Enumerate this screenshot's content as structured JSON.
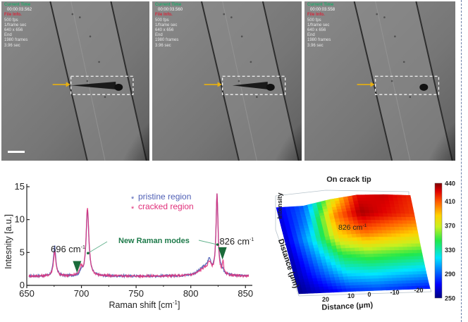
{
  "frames": [
    {
      "current_time_label": "Current Time",
      "timestamp": "00:00:03.562",
      "file_info_label": "File Info.",
      "lines": [
        "500 fps",
        "1/frame sec",
        "640 x 656",
        "End",
        "1980 frames",
        "3.96 sec"
      ],
      "has_scale_bar": true,
      "crack_state": "long-crack"
    },
    {
      "current_time_label": "Current Time",
      "timestamp": "00:00:03.560",
      "file_info_label": "File Info.",
      "lines": [
        "500 fps",
        "1/frame sec",
        "640 x 656",
        "End",
        "1980 frames",
        "3.96 sec"
      ],
      "has_scale_bar": false,
      "crack_state": "short-crack"
    },
    {
      "current_time_label": "Current Time",
      "timestamp": "00:00:03.558",
      "file_info_label": "File Info.",
      "lines": [
        "500 fps",
        "1/frame sec",
        "640 x 656",
        "End",
        "1980 frames",
        "3.96 sec"
      ],
      "has_scale_bar": false,
      "crack_state": "no-crack"
    }
  ],
  "colors": {
    "arrow": "#e8b010",
    "pristine": "#4f5fb5",
    "cracked": "#e0307a",
    "annotation_green": "#1e7a4a",
    "marker_green": "#1a6a3a"
  },
  "chart_data": [
    {
      "type": "line",
      "title": "",
      "xlabel": "Raman shift [cm-1]",
      "xlabel_main": "Raman shift [cm",
      "xlabel_sup": "-1",
      "xlabel_tail": "]",
      "ylabel": "Intesnity [a.u.]",
      "xlim": [
        650,
        855
      ],
      "ylim": [
        0,
        15
      ],
      "x_ticks": [
        650,
        700,
        750,
        800,
        850
      ],
      "y_ticks": [
        0,
        5,
        10,
        15
      ],
      "legend": {
        "placement": "top-right",
        "entries": [
          {
            "name": "pristine region",
            "marker": "*"
          },
          {
            "name": "cracked region",
            "marker": "*"
          }
        ]
      },
      "annotations": [
        {
          "text": "696 cm",
          "sup": "-1",
          "x": 696,
          "marker": "down-triangle"
        },
        {
          "text": "826 cm",
          "sup": "-1",
          "x": 826,
          "marker": "down-triangle"
        },
        {
          "text": "New Raman modes"
        }
      ],
      "baseline": 1.4,
      "series": [
        {
          "name": "pristine region",
          "peaks": [
            {
              "x": 675.5,
              "height": 4.5,
              "width": 1.3
            },
            {
              "x": 705.5,
              "height": 10.1,
              "width": 1.5
            },
            {
              "x": 700,
              "height": 0.6,
              "width": 1.2
            },
            {
              "x": 812,
              "height": 1.2,
              "width": 6.0
            },
            {
              "x": 817,
              "height": 1.8,
              "width": 2.0
            },
            {
              "x": 824,
              "height": 12.0,
              "width": 1.1
            },
            {
              "x": 828,
              "height": 0.6,
              "width": 2.5
            }
          ]
        },
        {
          "name": "cracked region",
          "peaks": [
            {
              "x": 675.5,
              "height": 3.8,
              "width": 1.3
            },
            {
              "x": 705.5,
              "height": 10.3,
              "width": 1.5
            },
            {
              "x": 699.5,
              "height": 1.3,
              "width": 1.1
            },
            {
              "x": 812,
              "height": 1.0,
              "width": 6.0
            },
            {
              "x": 817,
              "height": 1.5,
              "width": 2.0
            },
            {
              "x": 824,
              "height": 12.2,
              "width": 1.1
            },
            {
              "x": 829.5,
              "height": 1.9,
              "width": 0.7
            }
          ]
        }
      ]
    },
    {
      "type": "heatmap",
      "title": "On crack tip",
      "xlabel": "Distance (μm)",
      "ylabel": "Distance (μm)",
      "zlabel": "Intensity",
      "x_ticks": [
        20,
        10,
        0,
        -10,
        -20
      ],
      "colorbar": {
        "range": [
          250,
          440
        ],
        "ticks": [
          250,
          290,
          330,
          370,
          410,
          440
        ]
      },
      "annotation": {
        "text": "826 cm",
        "sup": "-1"
      },
      "grid_x": [
        25,
        15,
        5,
        -5,
        -15,
        -20
      ],
      "grid_rows": [
        [
          270,
          290,
          370,
          425,
          430,
          420
        ],
        [
          265,
          300,
          400,
          435,
          425,
          415
        ],
        [
          262,
          315,
          385,
          405,
          395,
          385
        ],
        [
          258,
          300,
          345,
          355,
          350,
          345
        ],
        [
          255,
          285,
          315,
          320,
          315,
          310
        ],
        [
          252,
          265,
          280,
          285,
          280,
          275
        ]
      ]
    }
  ]
}
